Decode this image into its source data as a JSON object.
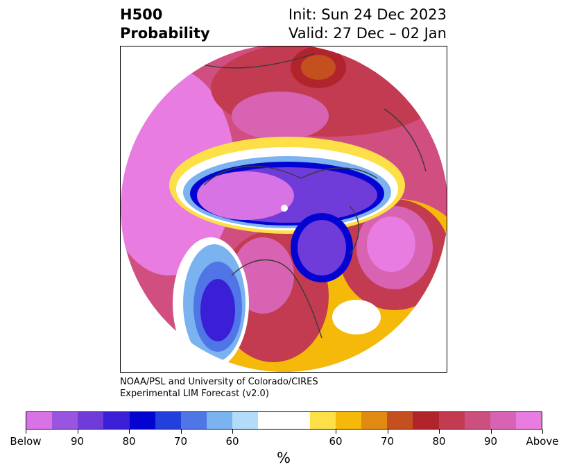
{
  "header": {
    "title_line1": "H500",
    "title_line2": "Probability",
    "init_text": "Init: Sun 24 Dec 2023",
    "valid_text": "Valid: 27 Dec – 02 Jan"
  },
  "credit": {
    "line1": "NOAA/PSL and University of Colorado/CIRES",
    "line2": "Experimental LIM Forecast (v2.0)"
  },
  "colorbar": {
    "unit": "%",
    "colors": [
      "#d873e6",
      "#9a55e0",
      "#6f3bd9",
      "#3a1fd6",
      "#0404d2",
      "#2340dc",
      "#4f75e6",
      "#7bb2f0",
      "#b3dcfb",
      "#ffffff",
      "#ffffff",
      "#fde047",
      "#f5b90a",
      "#e08a12",
      "#c4501f",
      "#b2242b",
      "#c33b50",
      "#cc4f7e",
      "#d863b2",
      "#e87ce0"
    ],
    "tick_labels": [
      "Below",
      "90",
      "80",
      "70",
      "60",
      "60",
      "70",
      "80",
      "90",
      "Above"
    ]
  },
  "palette": {
    "below_strong": "#6f3bd9",
    "below_max": "#0404d2",
    "below_light": "#7bb2f0",
    "neutral": "#ffffff",
    "above_light": "#fde047",
    "above_mid": "#f5b90a",
    "above_strong": "#b2242b",
    "above_max": "#e87ce0",
    "coastline": "#3a3a3a"
  }
}
